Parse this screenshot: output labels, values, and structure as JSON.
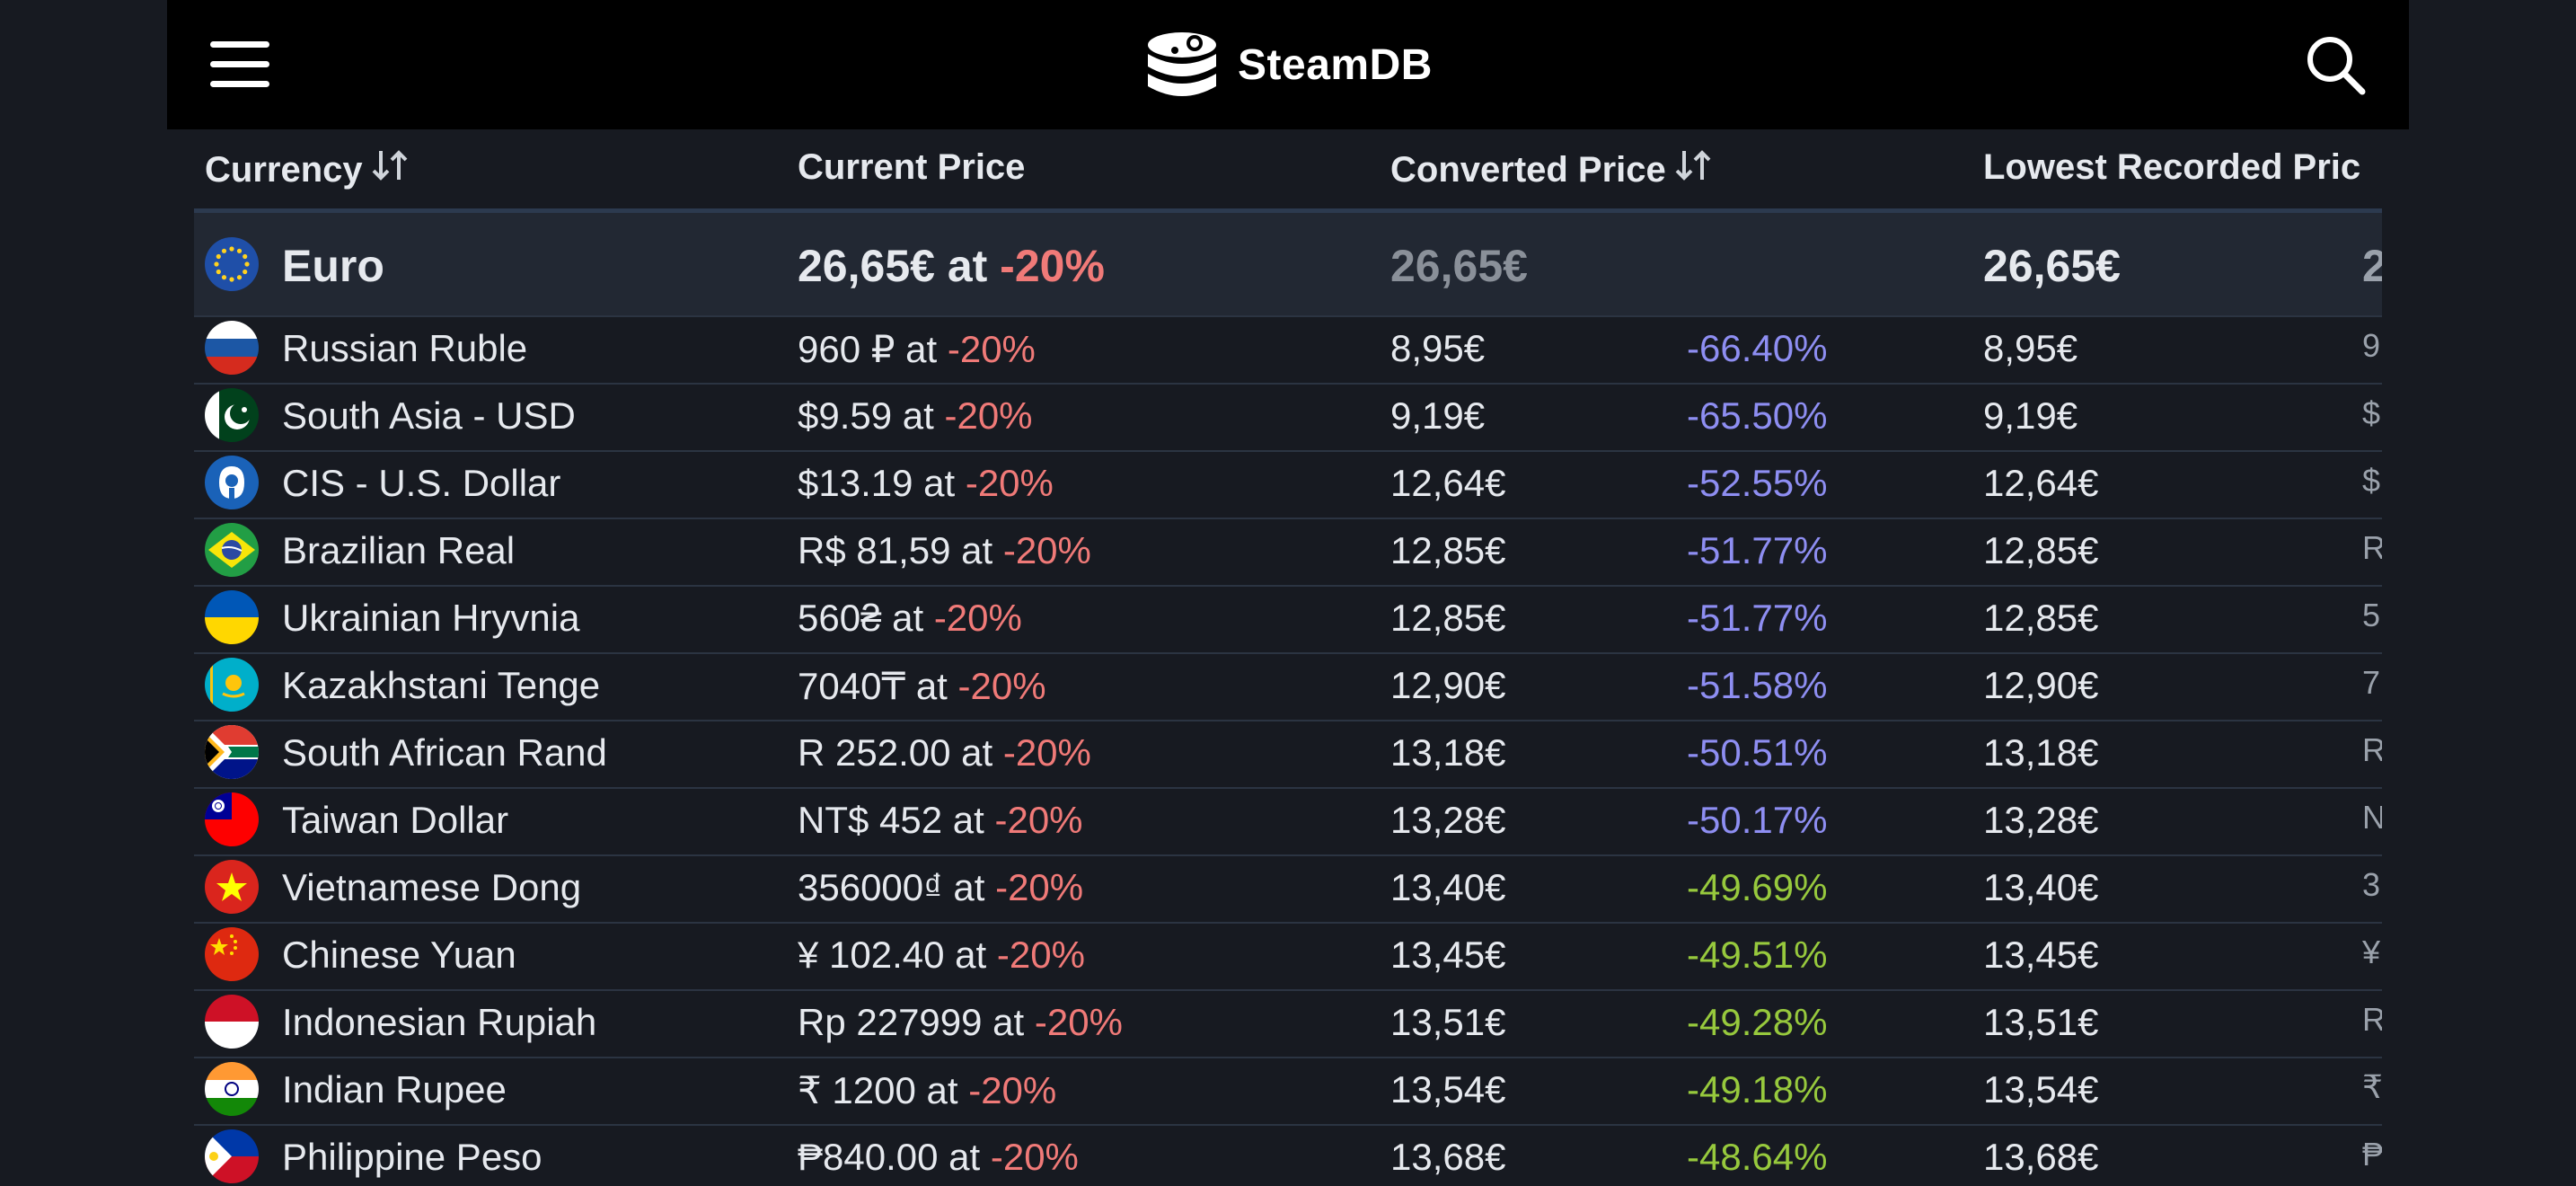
{
  "app": {
    "name": "SteamDB"
  },
  "header_icons": {
    "menu": "hamburger-menu-icon",
    "search": "search-icon",
    "logo": "steamdb-logo-icon"
  },
  "table": {
    "columns": [
      {
        "label": "Currency",
        "sortable": true
      },
      {
        "label": "Current Price",
        "sortable": false
      },
      {
        "label": "Converted Price",
        "sortable": true
      },
      {
        "label": "Lowest Recorded Pric",
        "sortable": false
      }
    ],
    "featured": {
      "flag": "eu-flag-icon",
      "currency": "Euro",
      "price": "26,65€ at ",
      "discount": "-20%",
      "converted": "26,65€",
      "lowest": "26,65€",
      "next_col": "2"
    },
    "rows": [
      {
        "flag": "ru-flag-icon",
        "currency": "Russian Ruble",
        "price": "960 ₽ at ",
        "discount": "-20%",
        "converted": "8,95€",
        "diff": "-66.40%",
        "diff_tone": "blue",
        "lowest": "8,95€",
        "next_col": "9"
      },
      {
        "flag": "pk-flag-icon",
        "currency": "South Asia - USD",
        "price": "$9.59 at ",
        "discount": "-20%",
        "converted": "9,19€",
        "diff": "-65.50%",
        "diff_tone": "blue",
        "lowest": "9,19€",
        "next_col": "$"
      },
      {
        "flag": "cis-flag-icon",
        "currency": "CIS - U.S. Dollar",
        "price": "$13.19 at ",
        "discount": "-20%",
        "converted": "12,64€",
        "diff": "-52.55%",
        "diff_tone": "blue",
        "lowest": "12,64€",
        "next_col": "$"
      },
      {
        "flag": "br-flag-icon",
        "currency": "Brazilian Real",
        "price": "R$ 81,59 at ",
        "discount": "-20%",
        "converted": "12,85€",
        "diff": "-51.77%",
        "diff_tone": "blue",
        "lowest": "12,85€",
        "next_col": "R"
      },
      {
        "flag": "ua-flag-icon",
        "currency": "Ukrainian Hryvnia",
        "price": "560₴ at ",
        "discount": "-20%",
        "converted": "12,85€",
        "diff": "-51.77%",
        "diff_tone": "blue",
        "lowest": "12,85€",
        "next_col": "5"
      },
      {
        "flag": "kz-flag-icon",
        "currency": "Kazakhstani Tenge",
        "price": "7040₸ at ",
        "discount": "-20%",
        "converted": "12,90€",
        "diff": "-51.58%",
        "diff_tone": "blue",
        "lowest": "12,90€",
        "next_col": "7"
      },
      {
        "flag": "za-flag-icon",
        "currency": "South African Rand",
        "price": "R 252.00 at ",
        "discount": "-20%",
        "converted": "13,18€",
        "diff": "-50.51%",
        "diff_tone": "blue",
        "lowest": "13,18€",
        "next_col": "R"
      },
      {
        "flag": "tw-flag-icon",
        "currency": "Taiwan Dollar",
        "price": "NT$ 452 at ",
        "discount": "-20%",
        "converted": "13,28€",
        "diff": "-50.17%",
        "diff_tone": "blue",
        "lowest": "13,28€",
        "next_col": "N"
      },
      {
        "flag": "vn-flag-icon",
        "currency": "Vietnamese Dong",
        "price": "356000₫ at ",
        "discount": "-20%",
        "converted": "13,40€",
        "diff": "-49.69%",
        "diff_tone": "green",
        "lowest": "13,40€",
        "next_col": "3"
      },
      {
        "flag": "cn-flag-icon",
        "currency": "Chinese Yuan",
        "price": "¥ 102.40 at ",
        "discount": "-20%",
        "converted": "13,45€",
        "diff": "-49.51%",
        "diff_tone": "green",
        "lowest": "13,45€",
        "next_col": "¥"
      },
      {
        "flag": "id-flag-icon",
        "currency": "Indonesian Rupiah",
        "price": "Rp 227999 at ",
        "discount": "-20%",
        "converted": "13,51€",
        "diff": "-49.28%",
        "diff_tone": "green",
        "lowest": "13,51€",
        "next_col": "R"
      },
      {
        "flag": "in-flag-icon",
        "currency": "Indian Rupee",
        "price": "₹ 1200 at ",
        "discount": "-20%",
        "converted": "13,54€",
        "diff": "-49.18%",
        "diff_tone": "green",
        "lowest": "13,54€",
        "next_col": "₹"
      },
      {
        "flag": "ph-flag-icon",
        "currency": "Philippine Peso",
        "price": "₱840.00 at ",
        "discount": "-20%",
        "converted": "13,68€",
        "diff": "-48.64%",
        "diff_tone": "green",
        "lowest": "13,68€",
        "next_col": "₱"
      }
    ]
  },
  "colors": {
    "background": "#171a21",
    "topbar": "#000000",
    "discount_red": "#f07a78",
    "diff_blue": "#8e8ef2",
    "diff_green": "#97c93d"
  }
}
